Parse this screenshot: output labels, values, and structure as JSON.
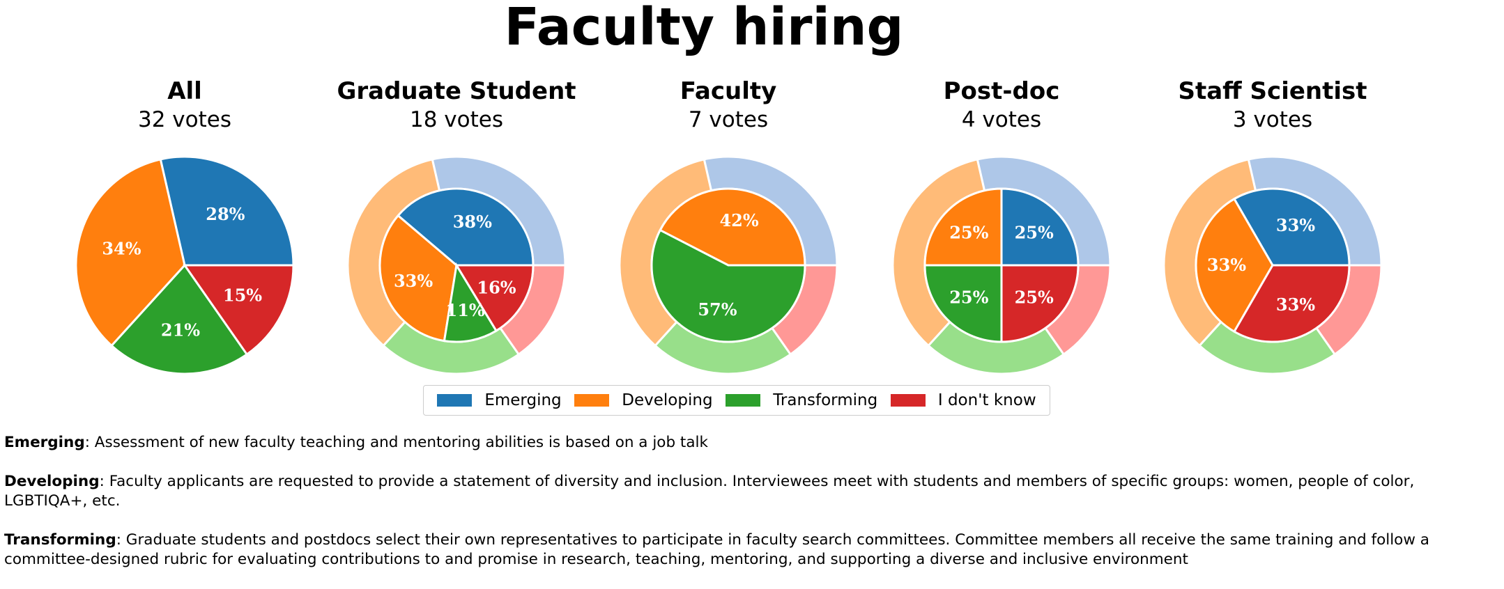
{
  "title": "Faculty hiring",
  "chart_data": {
    "type": "pie",
    "title": "Faculty hiring",
    "categories": [
      "Emerging",
      "Developing",
      "Transforming",
      "I don't know"
    ],
    "colors": [
      "#1f77b4",
      "#ff7f0e",
      "#2ca02c",
      "#d62728"
    ],
    "outer_ring_colors": [
      "#aec7e8",
      "#ffbb78",
      "#98df8a",
      "#ff9896"
    ],
    "overall_reference": [
      28,
      34,
      21,
      15
    ],
    "legend_placement": "lower center",
    "charts": [
      {
        "title": "All",
        "subtitle": "32 votes",
        "values": [
          28,
          34,
          21,
          15
        ],
        "labels": [
          "28%",
          "34%",
          "21%",
          "15%"
        ]
      },
      {
        "title": "Graduate Student",
        "subtitle": "18 votes",
        "values": [
          38,
          33,
          11,
          16
        ],
        "labels": [
          "38%",
          "33%",
          "11%",
          "16%"
        ]
      },
      {
        "title": "Faculty",
        "subtitle": "7 votes",
        "values": [
          0,
          42,
          57,
          0
        ],
        "labels": [
          "",
          "42%",
          "57%",
          ""
        ]
      },
      {
        "title": "Post-doc",
        "subtitle": "4 votes",
        "values": [
          25,
          25,
          25,
          25
        ],
        "labels": [
          "25%",
          "25%",
          "25%",
          "25%"
        ]
      },
      {
        "title": "Staff Scientist",
        "subtitle": "3 votes",
        "values": [
          33,
          33,
          0,
          33
        ],
        "labels": [
          "33%",
          "33%",
          "",
          "33%"
        ]
      }
    ]
  },
  "definitions": [
    {
      "term": "Emerging",
      "text": ": Assessment of new faculty teaching and mentoring abilities is based on a job talk"
    },
    {
      "term": "Developing",
      "text": ": Faculty applicants are requested to provide a statement of diversity and inclusion. Interviewees meet with students and members of specific groups: women, people of color, LGBTIQA+, etc."
    },
    {
      "term": "Transforming",
      "text": ": Graduate students and postdocs select their own representatives to participate in faculty search committees. Committee members all receive the same training and follow a committee-designed rubric for evaluating contributions to and promise in research, teaching, mentoring, and supporting a diverse and inclusive environment"
    }
  ]
}
